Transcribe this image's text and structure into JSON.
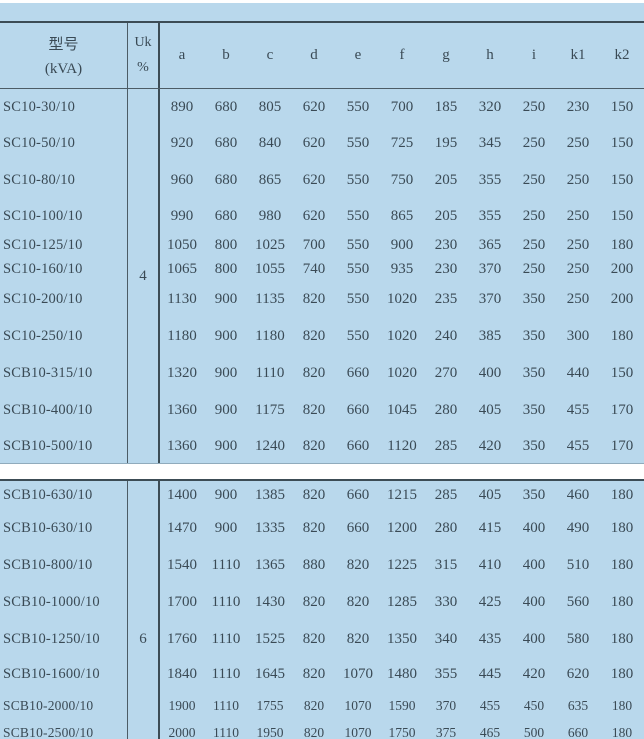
{
  "colors": {
    "table_bg": "#b9d8ec",
    "text": "#3a4a55",
    "border_heavy": "#3c4c55",
    "border_light": "#4c5c66"
  },
  "header": {
    "model_label_line1": "型号",
    "model_label_line2": "(kVA)",
    "uk_label_line1": "Uk",
    "uk_label_line2": "%",
    "dim_columns": [
      "a",
      "b",
      "c",
      "d",
      "e",
      "f",
      "g",
      "h",
      "i",
      "k1",
      "k2"
    ]
  },
  "table1": {
    "uk_value": "4",
    "rows": [
      {
        "model": "SC10-30/10",
        "values": [
          "890",
          "680",
          "805",
          "620",
          "550",
          "700",
          "185",
          "320",
          "250",
          "230",
          "150"
        ]
      },
      {
        "model": "SC10-50/10",
        "values": [
          "920",
          "680",
          "840",
          "620",
          "550",
          "725",
          "195",
          "345",
          "250",
          "250",
          "150"
        ]
      },
      {
        "model": "SC10-80/10",
        "values": [
          "960",
          "680",
          "865",
          "620",
          "550",
          "750",
          "205",
          "355",
          "250",
          "250",
          "150"
        ]
      },
      {
        "model": "SC10-100/10",
        "values": [
          "990",
          "680",
          "980",
          "620",
          "550",
          "865",
          "205",
          "355",
          "250",
          "250",
          "150"
        ]
      },
      {
        "model": "SC10-125/10",
        "values": [
          "1050",
          "800",
          "1025",
          "700",
          "550",
          "900",
          "230",
          "365",
          "250",
          "250",
          "180"
        ]
      },
      {
        "model": "SC10-160/10",
        "values": [
          "1065",
          "800",
          "1055",
          "740",
          "550",
          "935",
          "230",
          "370",
          "250",
          "250",
          "200"
        ]
      },
      {
        "model": "SC10-200/10",
        "values": [
          "1130",
          "900",
          "1135",
          "820",
          "550",
          "1020",
          "235",
          "370",
          "350",
          "250",
          "200"
        ]
      },
      {
        "model": "SC10-250/10",
        "values": [
          "1180",
          "900",
          "1180",
          "820",
          "550",
          "1020",
          "240",
          "385",
          "350",
          "300",
          "180"
        ]
      },
      {
        "model": "SCB10-315/10",
        "values": [
          "1320",
          "900",
          "1110",
          "820",
          "660",
          "1020",
          "270",
          "400",
          "350",
          "440",
          "150"
        ]
      },
      {
        "model": "SCB10-400/10",
        "values": [
          "1360",
          "900",
          "1175",
          "820",
          "660",
          "1045",
          "280",
          "405",
          "350",
          "455",
          "170"
        ]
      },
      {
        "model": "SCB10-500/10",
        "values": [
          "1360",
          "900",
          "1240",
          "820",
          "660",
          "1120",
          "285",
          "420",
          "350",
          "455",
          "170"
        ]
      }
    ]
  },
  "table2": {
    "uk_value": "6",
    "rows": [
      {
        "model": "SCB10-630/10",
        "values": [
          "1400",
          "900",
          "1385",
          "820",
          "660",
          "1215",
          "285",
          "405",
          "350",
          "460",
          "180"
        ]
      },
      {
        "model": "SCB10-630/10",
        "values": [
          "1470",
          "900",
          "1335",
          "820",
          "660",
          "1200",
          "280",
          "415",
          "400",
          "490",
          "180"
        ]
      },
      {
        "model": "SCB10-800/10",
        "values": [
          "1540",
          "1110",
          "1365",
          "880",
          "820",
          "1225",
          "315",
          "410",
          "400",
          "510",
          "180"
        ]
      },
      {
        "model": "SCB10-1000/10",
        "values": [
          "1700",
          "1110",
          "1430",
          "820",
          "820",
          "1285",
          "330",
          "425",
          "400",
          "560",
          "180"
        ]
      },
      {
        "model": "SCB10-1250/10",
        "values": [
          "1760",
          "1110",
          "1525",
          "820",
          "820",
          "1350",
          "340",
          "435",
          "400",
          "580",
          "180"
        ]
      },
      {
        "model": "SCB10-1600/10",
        "values": [
          "1840",
          "1110",
          "1645",
          "820",
          "1070",
          "1480",
          "355",
          "445",
          "420",
          "620",
          "180"
        ]
      },
      {
        "model": "SCB10-2000/10",
        "values": [
          "1900",
          "1110",
          "1755",
          "820",
          "1070",
          "1590",
          "370",
          "455",
          "450",
          "635",
          "180"
        ]
      },
      {
        "model": "SCB10-2500/10",
        "values": [
          "2000",
          "1110",
          "1950",
          "820",
          "1070",
          "1750",
          "375",
          "465",
          "500",
          "660",
          "180"
        ]
      }
    ]
  }
}
